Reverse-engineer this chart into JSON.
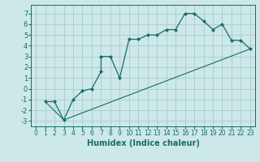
{
  "title": "",
  "xlabel": "Humidex (Indice chaleur)",
  "background_color": "#cce8e8",
  "grid_color": "#aacccc",
  "line_color": "#1a6b6b",
  "line1_x": [
    1,
    2,
    3,
    4,
    5,
    6,
    7,
    7,
    8,
    9,
    10,
    11,
    12,
    13,
    14,
    15,
    16,
    17,
    18,
    19,
    20,
    21,
    22,
    23
  ],
  "line1_y": [
    -1.2,
    -1.2,
    -2.9,
    -1.0,
    -0.2,
    0.0,
    1.6,
    3.0,
    3.0,
    1.0,
    4.6,
    4.6,
    5.0,
    5.0,
    5.5,
    5.5,
    7.0,
    7.0,
    6.3,
    5.5,
    6.0,
    4.5,
    4.5,
    3.7
  ],
  "line2_x": [
    1,
    3,
    23
  ],
  "line2_y": [
    -1.2,
    -2.9,
    3.7
  ],
  "ylim": [
    -3.5,
    7.8
  ],
  "xlim": [
    -0.5,
    23.5
  ],
  "yticks": [
    -3,
    -2,
    -1,
    0,
    1,
    2,
    3,
    4,
    5,
    6,
    7
  ],
  "xticks": [
    0,
    1,
    2,
    3,
    4,
    5,
    6,
    7,
    8,
    9,
    10,
    11,
    12,
    13,
    14,
    15,
    16,
    17,
    18,
    19,
    20,
    21,
    22,
    23
  ],
  "tick_fontsize": 5.5,
  "xlabel_fontsize": 7.0
}
